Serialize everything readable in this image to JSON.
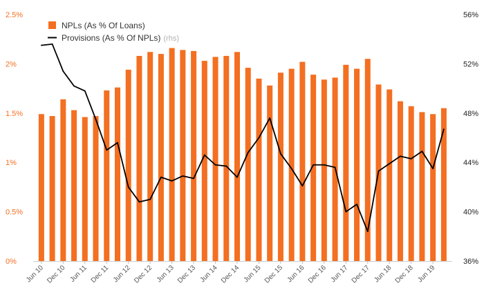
{
  "chart_data": {
    "type": "bar+line",
    "categories": [
      "Jun 10",
      "Sep 10",
      "Dec 10",
      "Mar 11",
      "Jun 11",
      "Sep 11",
      "Dec 11",
      "Mar 12",
      "Jun 12",
      "Sep 12",
      "Dec 12",
      "Mar 13",
      "Jun 13",
      "Sep 13",
      "Dec 13",
      "Mar 14",
      "Jun 14",
      "Sep 14",
      "Dec 14",
      "Mar 15",
      "Jun 15",
      "Sep 15",
      "Dec 15",
      "Mar 16",
      "Jun 16",
      "Sep 16",
      "Dec 16",
      "Mar 17",
      "Jun 17",
      "Sep 17",
      "Dec 17",
      "Mar 18",
      "Jun 18",
      "Sep 18",
      "Dec 18",
      "Mar 19",
      "Jun 19",
      "Sep 19"
    ],
    "x_tick_labels": [
      "Jun 10",
      "Dec 10",
      "Jun 11",
      "Dec 11",
      "Jun 12",
      "Dec 12",
      "Jun 13",
      "Dec 13",
      "Jun 14",
      "Dec 14",
      "Jun 15",
      "Dec 15",
      "Jun 16",
      "Dec 16",
      "Jun 17",
      "Dec 17",
      "Jun 18",
      "Dec 18",
      "Jun 19"
    ],
    "series": [
      {
        "name": "NPLs (As % Of Loans)",
        "kind": "bar",
        "axis": "left",
        "color": "#f36f21",
        "values": [
          1.49,
          1.47,
          1.64,
          1.53,
          1.46,
          1.47,
          1.73,
          1.76,
          1.94,
          2.08,
          2.12,
          2.1,
          2.16,
          2.14,
          2.13,
          2.03,
          2.07,
          2.08,
          2.12,
          1.96,
          1.85,
          1.78,
          1.91,
          1.95,
          2.02,
          1.89,
          1.84,
          1.86,
          1.99,
          1.95,
          2.05,
          1.79,
          1.74,
          1.62,
          1.57,
          1.51,
          1.49,
          1.55
        ]
      },
      {
        "name": "Provisions (As % Of NPLs)",
        "name_note": "(rhs)",
        "kind": "line",
        "axis": "right",
        "color": "#000000",
        "values": [
          53.5,
          53.6,
          51.4,
          50.2,
          49.8,
          47.5,
          45.0,
          45.6,
          42.0,
          40.8,
          41.0,
          42.8,
          42.5,
          42.9,
          42.7,
          44.6,
          43.8,
          43.7,
          42.8,
          44.8,
          46.0,
          47.6,
          44.7,
          43.5,
          42.1,
          43.8,
          43.8,
          43.6,
          40.0,
          40.6,
          38.4,
          43.3,
          43.9,
          44.5,
          44.3,
          44.9,
          43.5,
          46.7
        ]
      }
    ],
    "y_left": {
      "ylim": [
        0,
        2.5
      ],
      "ticks": [
        "0%",
        "0.5%",
        "1%",
        "1.5%",
        "2%",
        "2.5%"
      ],
      "color": "#f36f21"
    },
    "y_right": {
      "ylim": [
        36,
        56
      ],
      "ticks": [
        "36%",
        "40%",
        "44%",
        "48%",
        "52%",
        "56%"
      ],
      "color": "#222222"
    },
    "legend_placement": "top-left",
    "grid": false
  }
}
